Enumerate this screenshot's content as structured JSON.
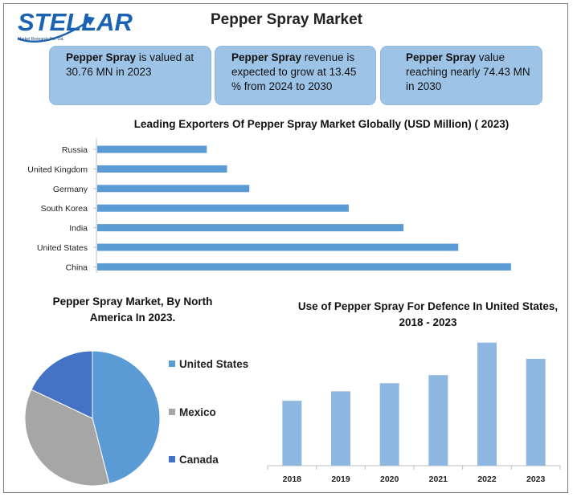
{
  "logo": {
    "text": "STELLAR",
    "subtitle": "Market Research Pvt. Ltd."
  },
  "page_title": "Pepper Spray Market",
  "cards": [
    {
      "bold": "Pepper Spray",
      "text": " is valued at 30.76 MN in 2023"
    },
    {
      "bold": "Pepper Spray",
      "text": " revenue is expected to grow at 13.45 % from 2024 to 2030"
    },
    {
      "bold": "Pepper Spray",
      "text": " value reaching nearly 74.43 MN in 2030"
    }
  ],
  "colors": {
    "bar": "#5b9bd5",
    "column": "#8eb8e2",
    "pie_us": "#5b9bd5",
    "pie_mexico": "#a6a6a6",
    "pie_canada": "#4472c4",
    "card": "#9dc3e6"
  },
  "chart_data": [
    {
      "type": "bar",
      "orientation": "horizontal",
      "title": "Leading Exporters Of Pepper Spray Market Globally (USD Million) ( 2023)",
      "categories": [
        "Russia",
        "United Kingdom",
        "Germany",
        "South Korea",
        "India",
        "United States",
        "China"
      ],
      "values": [
        27,
        32,
        37.5,
        62,
        75.5,
        89,
        102
      ],
      "xlim": [
        0,
        105
      ],
      "grid": false
    },
    {
      "type": "pie",
      "title": "Pepper Spray Market, By North America In 2023.",
      "labels": [
        "United States",
        "Mexico",
        "Canada"
      ],
      "values": [
        46,
        36,
        18
      ],
      "legend": "right"
    },
    {
      "type": "bar",
      "title": "Use of Pepper Spray For Defence In United States, 2018 - 2023",
      "categories": [
        "2018",
        "2019",
        "2020",
        "2021",
        "2022",
        "2023"
      ],
      "values": [
        48,
        55,
        61,
        67,
        91,
        79
      ],
      "ylim": [
        0,
        95
      ],
      "grid": false
    }
  ]
}
